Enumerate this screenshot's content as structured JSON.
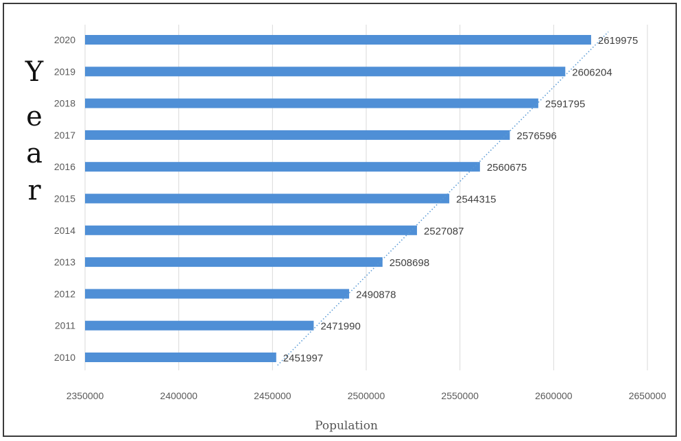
{
  "chart_data": {
    "type": "bar",
    "orientation": "horizontal",
    "categories": [
      "2010",
      "2011",
      "2012",
      "2013",
      "2014",
      "2015",
      "2016",
      "2017",
      "2018",
      "2019",
      "2020"
    ],
    "values": [
      2451997,
      2471990,
      2490878,
      2508698,
      2527087,
      2544315,
      2560675,
      2576596,
      2591795,
      2606204,
      2619975
    ],
    "data_labels": [
      "2451997",
      "2471990",
      "2490878",
      "2508698",
      "2527087",
      "2544315",
      "2560675",
      "2576596",
      "2591795",
      "2606204",
      "2619975"
    ],
    "xlim": [
      2350000,
      2650000
    ],
    "x_ticks": [
      "2350000",
      "2400000",
      "2450000",
      "2500000",
      "2550000",
      "2600000",
      "2650000"
    ],
    "xlabel": "Population",
    "ylabel_letters": [
      "Y",
      "e",
      "a",
      "r"
    ],
    "trendline": "dotted-linear",
    "grid": "vertical",
    "bar_color": "#4f8fd6",
    "trend_color": "#5b9bd5",
    "grid_color": "#d9d9d9"
  }
}
